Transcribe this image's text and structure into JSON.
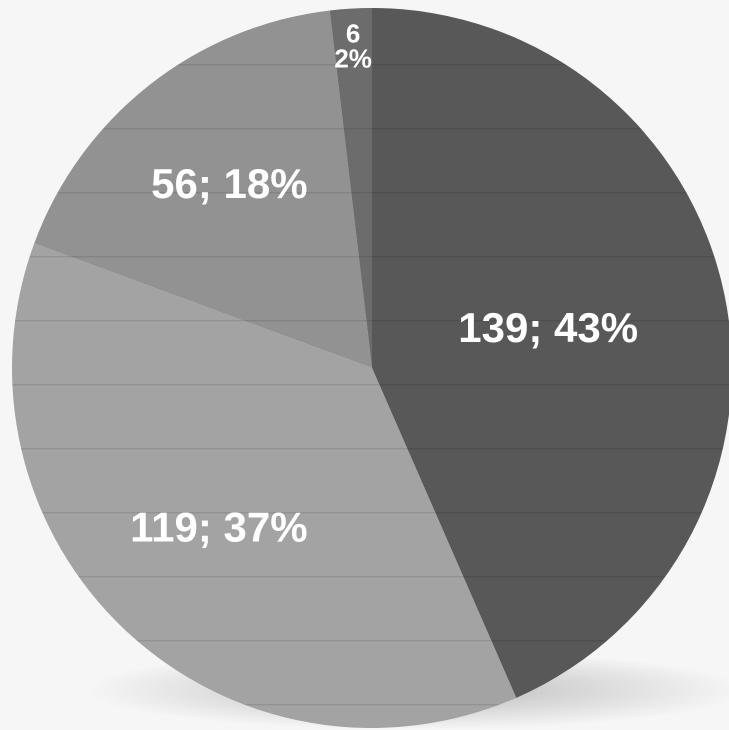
{
  "chart_data": {
    "type": "pie",
    "title": "",
    "legend": "none",
    "slices": [
      {
        "value": 139,
        "percent": "43%",
        "label": "139; 43%",
        "label_lines": [
          "139; 43%"
        ],
        "color": "#585858"
      },
      {
        "value": 119,
        "percent": "37%",
        "label": "119; 37%",
        "label_lines": [
          "119; 37%"
        ],
        "color": "#a3a3a3"
      },
      {
        "value": 56,
        "percent": "18%",
        "label": "56; 18%",
        "label_lines": [
          "56; 18%"
        ],
        "color": "#929292"
      },
      {
        "value": 6,
        "percent": "2%",
        "label": "6 2%",
        "label_lines": [
          "6",
          "2%"
        ],
        "color": "#6c6c6c"
      }
    ]
  }
}
